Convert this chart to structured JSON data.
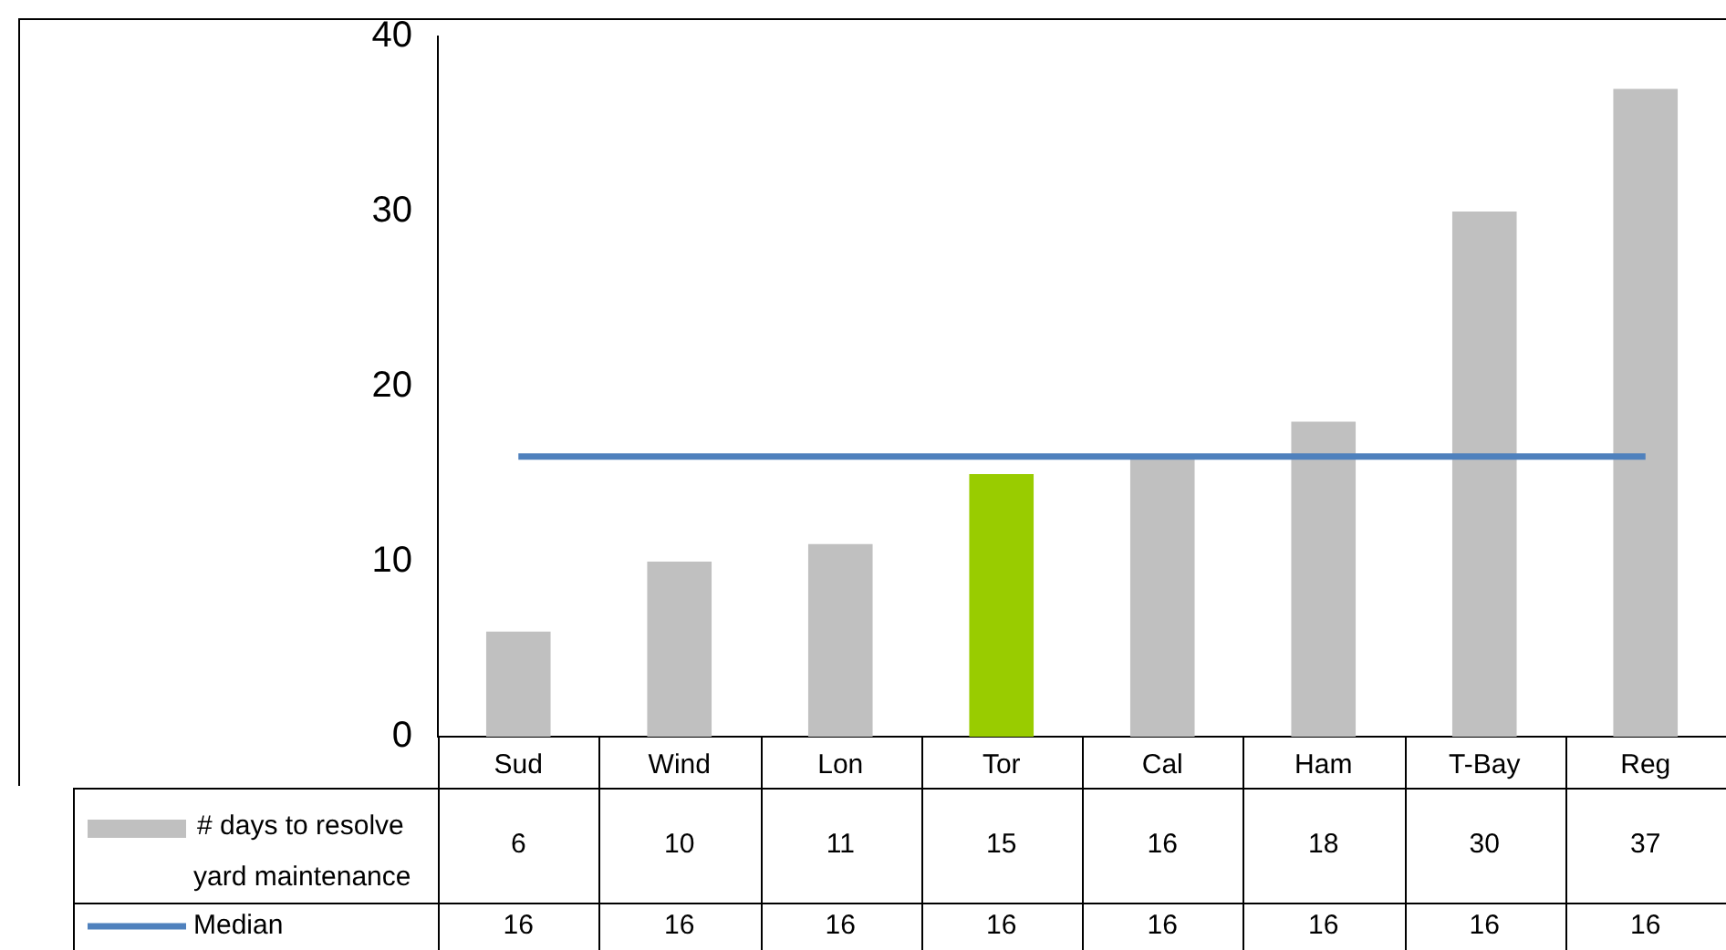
{
  "chart_data": {
    "type": "bar",
    "categories": [
      "Sud",
      "Wind",
      "Lon",
      "Tor",
      "Cal",
      "Ham",
      "T-Bay",
      "Reg"
    ],
    "series": [
      {
        "name": "# days to resolve yard maintenance",
        "colors": [
          "#c0c0c0",
          "#c0c0c0",
          "#c0c0c0",
          "#99cc00",
          "#c0c0c0",
          "#c0c0c0",
          "#c0c0c0",
          "#c0c0c0"
        ],
        "values": [
          6,
          10,
          11,
          15,
          16,
          18,
          30,
          37
        ]
      },
      {
        "name": "Median",
        "type": "line",
        "color": "#4f81bd",
        "values": [
          16,
          16,
          16,
          16,
          16,
          16,
          16,
          16
        ]
      }
    ],
    "ylim": [
      0,
      40
    ],
    "yticks": [
      0,
      10,
      20,
      30,
      40
    ],
    "grid": false,
    "legend": "bottom left",
    "data_labels": true,
    "marker": "none"
  }
}
